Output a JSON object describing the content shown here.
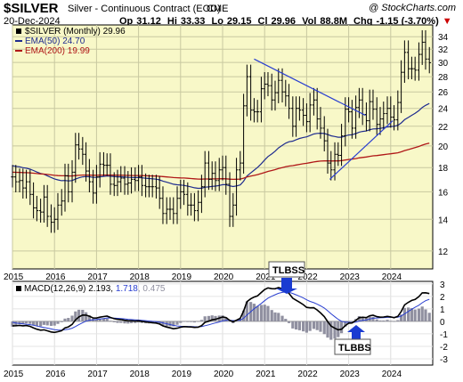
{
  "header": {
    "symbol": "$SILVER",
    "description": "Silver - Continuous Contract (EOD)",
    "exchange": "CME",
    "copyright": "@ StockCharts.com",
    "date": "20-Dec-2024",
    "open_label": "Op",
    "open": "31.12",
    "high_label": "Hi",
    "high": "33.33",
    "low_label": "Lo",
    "low": "29.15",
    "close_label": "Cl",
    "close": "29.96",
    "volume_label": "Vol",
    "volume": "88.8M",
    "change_label": "Chg",
    "change": "-1.15 (-3.70%)",
    "change_color": "#cc0000"
  },
  "price_panel": {
    "legend": [
      {
        "label": "$SILVER (Monthly) 29.96",
        "color": "#000000"
      },
      {
        "label": "EMA(50) 24.70",
        "color": "#1f2c8f"
      },
      {
        "label": "EMA(200) 19.99",
        "color": "#b01818"
      }
    ],
    "background": "#f8f8c8"
  },
  "macd_panel": {
    "label_prefix": "MACD(12,26,9)",
    "macd_value": "2.193",
    "signal_value": "1.718",
    "hist_value": "0.475",
    "macd_color": "#000000",
    "signal_color": "#2a3fd0",
    "hist_color": "#9090a0"
  },
  "annotations": {
    "tlbss": "TLBSS",
    "tlbbs": "TLBBS",
    "arrow_color": "#1a3bd1"
  },
  "chart_data": [
    {
      "type": "candlestick",
      "title": "Silver - Continuous Contract (EOD)",
      "scale": "log",
      "ylim": [
        11,
        36
      ],
      "y_ticks": [
        12,
        14,
        16,
        18,
        20,
        22,
        24,
        26,
        28,
        30,
        32,
        34
      ],
      "x_ticks": [
        "2015",
        "2016",
        "2017",
        "2018",
        "2019",
        "2020",
        "2021",
        "2022",
        "2023",
        "2024"
      ],
      "xlim": [
        2015.0,
        2025.0
      ],
      "grid": true,
      "series": [
        {
          "name": "$SILVER (Monthly)",
          "x": [
            2015.0,
            2015.08,
            2015.17,
            2015.25,
            2015.33,
            2015.42,
            2015.5,
            2015.58,
            2015.67,
            2015.75,
            2015.83,
            2015.92,
            2016.0,
            2016.08,
            2016.17,
            2016.25,
            2016.33,
            2016.42,
            2016.5,
            2016.58,
            2016.67,
            2016.75,
            2016.83,
            2016.92,
            2017.0,
            2017.08,
            2017.17,
            2017.25,
            2017.33,
            2017.42,
            2017.5,
            2017.58,
            2017.67,
            2017.75,
            2017.83,
            2017.92,
            2018.0,
            2018.08,
            2018.17,
            2018.25,
            2018.33,
            2018.42,
            2018.5,
            2018.58,
            2018.67,
            2018.75,
            2018.83,
            2018.92,
            2019.0,
            2019.08,
            2019.17,
            2019.25,
            2019.33,
            2019.42,
            2019.5,
            2019.58,
            2019.67,
            2019.75,
            2019.83,
            2019.92,
            2020.0,
            2020.08,
            2020.17,
            2020.25,
            2020.33,
            2020.42,
            2020.5,
            2020.58,
            2020.67,
            2020.75,
            2020.83,
            2020.92,
            2021.0,
            2021.08,
            2021.17,
            2021.25,
            2021.33,
            2021.42,
            2021.5,
            2021.58,
            2021.67,
            2021.75,
            2021.83,
            2021.92,
            2022.0,
            2022.08,
            2022.17,
            2022.25,
            2022.33,
            2022.42,
            2022.5,
            2022.58,
            2022.67,
            2022.75,
            2022.83,
            2022.92,
            2023.0,
            2023.08,
            2023.17,
            2023.25,
            2023.33,
            2023.42,
            2023.5,
            2023.58,
            2023.67,
            2023.75,
            2023.83,
            2023.92,
            2024.0,
            2024.08,
            2024.17,
            2024.25,
            2024.33,
            2024.42,
            2024.5,
            2024.58,
            2024.67,
            2024.75,
            2024.83,
            2024.92
          ],
          "close": [
            17.2,
            16.8,
            16.9,
            16.3,
            16.8,
            15.8,
            14.8,
            14.6,
            14.5,
            15.6,
            14.2,
            13.8,
            14.0,
            15.0,
            15.3,
            17.3,
            16.0,
            17.6,
            20.1,
            19.7,
            19.2,
            17.7,
            16.8,
            15.9,
            17.2,
            18.3,
            18.2,
            18.2,
            16.6,
            16.5,
            16.8,
            17.1,
            16.6,
            16.7,
            17.0,
            16.9,
            17.2,
            16.5,
            16.4,
            16.4,
            16.4,
            16.3,
            15.5,
            14.4,
            14.7,
            14.7,
            14.4,
            15.5,
            16.0,
            15.8,
            15.0,
            15.0,
            14.6,
            15.2,
            16.4,
            18.4,
            17.0,
            17.5,
            16.9,
            17.8,
            18.0,
            16.6,
            14.2,
            15.0,
            17.8,
            18.4,
            24.3,
            28.0,
            23.8,
            23.6,
            23.6,
            26.4,
            27.0,
            26.8,
            25.0,
            25.9,
            27.5,
            26.0,
            25.5,
            24.0,
            22.0,
            24.0,
            23.8,
            23.2,
            22.5,
            24.4,
            25.0,
            22.8,
            21.8,
            20.5,
            18.4,
            17.8,
            19.2,
            19.1,
            21.0,
            23.9,
            23.6,
            21.8,
            24.1,
            25.0,
            23.3,
            22.6,
            24.8,
            23.9,
            22.2,
            22.8,
            23.4,
            24.0,
            23.0,
            22.7,
            24.7,
            28.6,
            31.5,
            29.1,
            29.1,
            28.9,
            31.2,
            33.1,
            30.5,
            29.96
          ]
        }
      ]
    },
    {
      "type": "line",
      "title": "MACD(12,26,9)",
      "ylim": [
        -3.5,
        3.2
      ],
      "y_ticks": [
        3,
        2,
        1,
        0,
        -1,
        -2,
        -3
      ],
      "x_ticks": [
        "2015",
        "2016",
        "2017",
        "2018",
        "2019",
        "2020",
        "2021",
        "2022",
        "2023",
        "2024"
      ],
      "legend": [
        "MACD 2.193",
        "Signal 1.718",
        "Histogram 0.475"
      ]
    }
  ]
}
